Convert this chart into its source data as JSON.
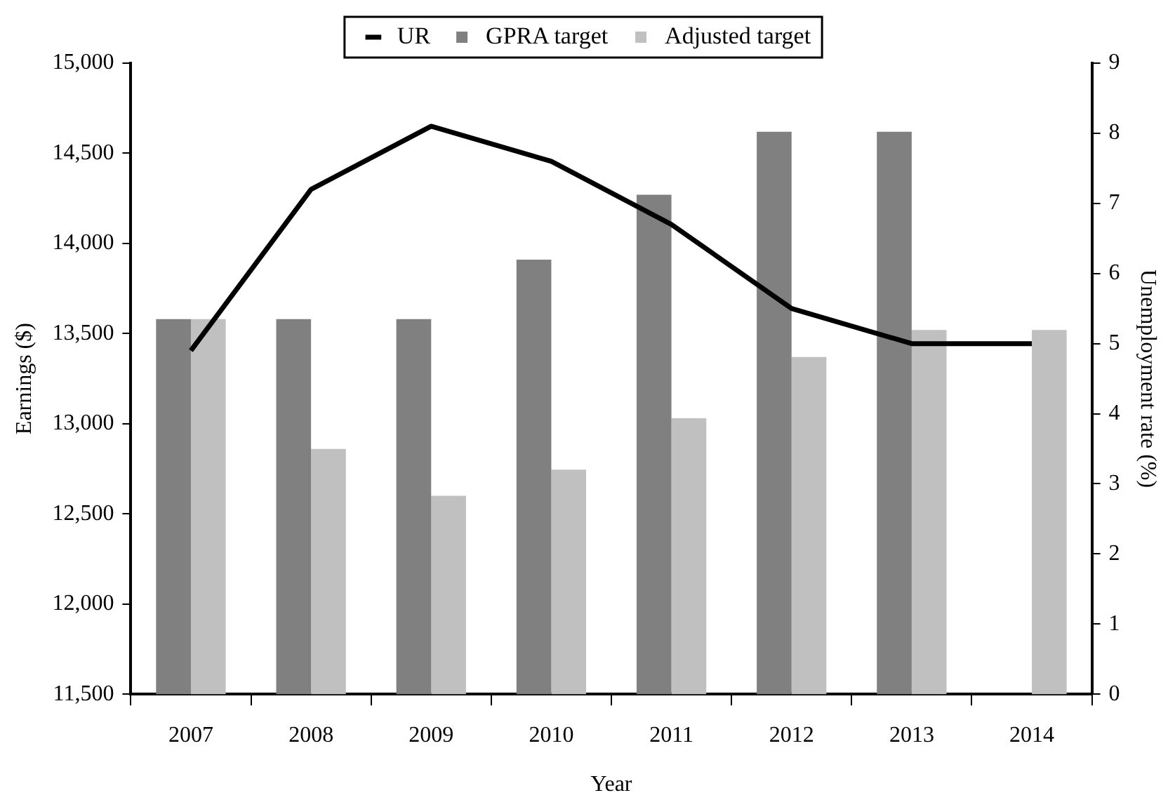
{
  "chart_data": {
    "type": "bar",
    "categories": [
      "2007",
      "2008",
      "2009",
      "2010",
      "2011",
      "2012",
      "2013",
      "2014"
    ],
    "series": [
      {
        "name": "GPRA target",
        "color": "#808080",
        "values": [
          13580,
          13580,
          13580,
          13910,
          14270,
          14620,
          14620,
          null
        ]
      },
      {
        "name": "Adjusted target",
        "color": "#c0c0c0",
        "values": [
          13580,
          12860,
          12600,
          12745,
          13030,
          13370,
          13520,
          13520
        ]
      },
      {
        "name": "UR",
        "type": "line",
        "axis": "y2",
        "color": "#000000",
        "values": [
          4.9,
          7.2,
          8.1,
          7.6,
          6.7,
          5.5,
          5.0,
          5.0
        ]
      }
    ],
    "xlabel": "Year",
    "ylabel": "Earnings ($)",
    "y2label": "Unemployment rate (%)",
    "ylim": [
      11500,
      15000
    ],
    "yticks": [
      {
        "value": 11500,
        "label": "11,500"
      },
      {
        "value": 12000,
        "label": "12,000"
      },
      {
        "value": 12500,
        "label": "12,500"
      },
      {
        "value": 13000,
        "label": "13,000"
      },
      {
        "value": 13500,
        "label": "13,500"
      },
      {
        "value": 14000,
        "label": "14,000"
      },
      {
        "value": 14500,
        "label": "14,500"
      },
      {
        "value": 15000,
        "label": "15,000"
      }
    ],
    "y2lim": [
      0,
      9
    ],
    "y2ticks": [
      0,
      1,
      2,
      3,
      4,
      5,
      6,
      7,
      8,
      9
    ],
    "grid": false,
    "legend": "top",
    "marker": "none"
  }
}
